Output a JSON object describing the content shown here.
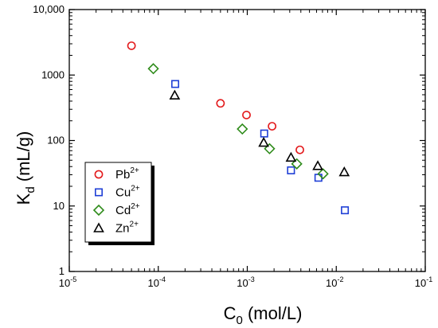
{
  "chart_data": {
    "type": "scatter",
    "title": "",
    "xlabel": {
      "base": "C",
      "sub": "0",
      "unit": " (mol/L)"
    },
    "ylabel": {
      "base": "K",
      "sub": "d",
      "unit": " (mL/g)"
    },
    "x_scale": "log",
    "y_scale": "log",
    "xlim": [
      1e-05,
      0.1
    ],
    "ylim": [
      1,
      10000
    ],
    "grid": false,
    "legend_position": "lower-left",
    "x_ticks": [
      {
        "value": 1e-05,
        "base": "10",
        "exp": "-5"
      },
      {
        "value": 0.0001,
        "base": "10",
        "exp": "-4"
      },
      {
        "value": 0.001,
        "base": "10",
        "exp": "-3"
      },
      {
        "value": 0.01,
        "base": "10",
        "exp": "-2"
      },
      {
        "value": 0.1,
        "base": "10",
        "exp": "-1"
      }
    ],
    "y_ticks": [
      {
        "value": 1,
        "label": "1"
      },
      {
        "value": 10,
        "label": "10"
      },
      {
        "value": 100,
        "label": "100"
      },
      {
        "value": 1000,
        "label": "1000"
      },
      {
        "value": 10000,
        "label": "10,000"
      }
    ],
    "series": [
      {
        "name": "Pb",
        "charge": "2+",
        "marker": "circle",
        "color": "#e31a1c",
        "points": [
          [
            5e-05,
            2800
          ],
          [
            0.0005,
            370
          ],
          [
            0.00098,
            245
          ],
          [
            0.0019,
            165
          ],
          [
            0.0039,
            72
          ]
        ]
      },
      {
        "name": "Cu",
        "charge": "2+",
        "marker": "square",
        "color": "#1f3fd6",
        "points": [
          [
            0.000155,
            730
          ],
          [
            0.00155,
            128
          ],
          [
            0.0031,
            35
          ],
          [
            0.0063,
            27
          ],
          [
            0.0125,
            8.6
          ]
        ]
      },
      {
        "name": "Cd",
        "charge": "2+",
        "marker": "diamond",
        "color": "#2e8b1a",
        "points": [
          [
            8.8e-05,
            1250
          ],
          [
            0.00088,
            150
          ],
          [
            0.00178,
            75
          ],
          [
            0.0036,
            44
          ],
          [
            0.0071,
            31
          ]
        ]
      },
      {
        "name": "Zn",
        "charge": "2+",
        "marker": "triangle",
        "color": "#000000",
        "points": [
          [
            0.000153,
            490
          ],
          [
            0.00153,
            93
          ],
          [
            0.0031,
            55
          ],
          [
            0.0062,
            41
          ],
          [
            0.0123,
            33
          ]
        ]
      }
    ]
  }
}
